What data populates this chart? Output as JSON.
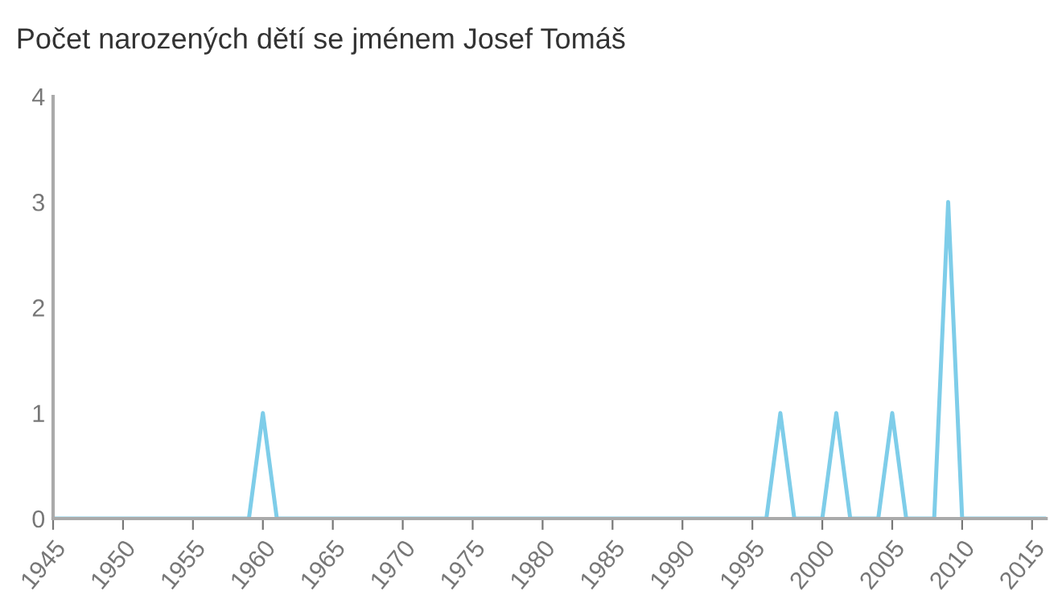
{
  "chart_data": {
    "type": "line",
    "title": "Počet narozených dětí se jménem Josef Tomáš",
    "x": [
      1945,
      1946,
      1947,
      1948,
      1949,
      1950,
      1951,
      1952,
      1953,
      1954,
      1955,
      1956,
      1957,
      1958,
      1959,
      1960,
      1961,
      1962,
      1963,
      1964,
      1965,
      1966,
      1967,
      1968,
      1969,
      1970,
      1971,
      1972,
      1973,
      1974,
      1975,
      1976,
      1977,
      1978,
      1979,
      1980,
      1981,
      1982,
      1983,
      1984,
      1985,
      1986,
      1987,
      1988,
      1989,
      1990,
      1991,
      1992,
      1993,
      1994,
      1995,
      1996,
      1997,
      1998,
      1999,
      2000,
      2001,
      2002,
      2003,
      2004,
      2005,
      2006,
      2007,
      2008,
      2009,
      2010,
      2011,
      2012,
      2013,
      2014,
      2015,
      2016
    ],
    "series": [
      {
        "color": "#7ecde9",
        "values": [
          0,
          0,
          0,
          0,
          0,
          0,
          0,
          0,
          0,
          0,
          0,
          0,
          0,
          0,
          0,
          1,
          0,
          0,
          0,
          0,
          0,
          0,
          0,
          0,
          0,
          0,
          0,
          0,
          0,
          0,
          0,
          0,
          0,
          0,
          0,
          0,
          0,
          0,
          0,
          0,
          0,
          0,
          0,
          0,
          0,
          0,
          0,
          0,
          0,
          0,
          0,
          0,
          1,
          0,
          0,
          0,
          1,
          0,
          0,
          0,
          1,
          0,
          0,
          0,
          3,
          0,
          0,
          0,
          0,
          0,
          0,
          0
        ]
      }
    ],
    "xlim": [
      1945,
      2016
    ],
    "xticks": [
      1945,
      1950,
      1955,
      1960,
      1965,
      1970,
      1975,
      1980,
      1985,
      1990,
      1995,
      2000,
      2005,
      2010,
      2015
    ],
    "ylim": [
      0,
      4
    ],
    "yticks": [
      0,
      1,
      2,
      3,
      4
    ],
    "grid": false,
    "legend": false,
    "marker": "none",
    "line_style": "solid"
  }
}
